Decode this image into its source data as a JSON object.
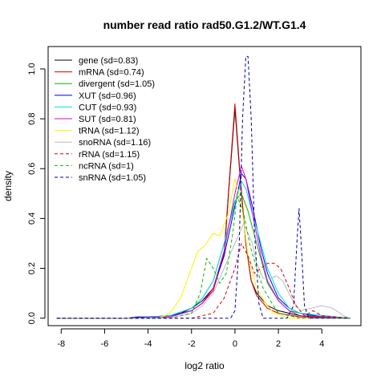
{
  "chart_data": {
    "type": "line",
    "title": "number read ratio rad50.G1.2/WT.G1.4",
    "xlabel": "log2 ratio",
    "ylabel": "density",
    "xlim": [
      -8.6,
      5.8
    ],
    "ylim": [
      -0.03,
      1.09
    ],
    "xticks": [
      -8,
      -6,
      -4,
      -2,
      0,
      2,
      4
    ],
    "yticks": [
      0.0,
      0.2,
      0.4,
      0.6,
      0.8,
      1.0
    ],
    "xtick_labels": [
      "-8",
      "-6",
      "-4",
      "-2",
      "0",
      "2",
      "4"
    ],
    "ytick_labels": [
      "0.0",
      "0.2",
      "0.4",
      "0.6",
      "0.8",
      "1.0"
    ],
    "legend_position": "top-left",
    "series": [
      {
        "name": "gene (sd=0.83)",
        "color": "#000000",
        "dash": "solid",
        "x": [
          -8.2,
          -5.0,
          -4.0,
          -3.0,
          -2.5,
          -2.0,
          -1.5,
          -1.0,
          -0.5,
          -0.25,
          0.0,
          0.25,
          0.5,
          0.75,
          1.0,
          1.5,
          2.0,
          2.5,
          3.0,
          3.5,
          5.3
        ],
        "y": [
          0,
          0,
          0.003,
          0.01,
          0.02,
          0.04,
          0.07,
          0.12,
          0.25,
          0.55,
          0.84,
          0.55,
          0.3,
          0.15,
          0.1,
          0.05,
          0.03,
          0.02,
          0.01,
          0.005,
          0
        ]
      },
      {
        "name": "mRNA (sd=0.74)",
        "color": "#d00000",
        "dash": "solid",
        "x": [
          -8.2,
          -5.0,
          -3.0,
          -2.0,
          -1.5,
          -1.0,
          -0.5,
          -0.25,
          0.0,
          0.25,
          0.5,
          0.75,
          1.0,
          1.5,
          2.0,
          3.0,
          5.3
        ],
        "y": [
          0,
          0,
          0.005,
          0.03,
          0.06,
          0.11,
          0.26,
          0.56,
          0.86,
          0.56,
          0.3,
          0.15,
          0.09,
          0.04,
          0.02,
          0.005,
          0
        ]
      },
      {
        "name": "divergent (sd=1.05)",
        "color": "#00bb00",
        "dash": "solid",
        "x": [
          -8.2,
          -4.5,
          -3.0,
          -2.0,
          -1.5,
          -1.0,
          -0.5,
          0.0,
          0.3,
          0.6,
          1.0,
          1.5,
          2.0,
          2.5,
          3.5,
          5.3
        ],
        "y": [
          0,
          0,
          0.01,
          0.04,
          0.08,
          0.15,
          0.3,
          0.47,
          0.5,
          0.43,
          0.3,
          0.14,
          0.07,
          0.03,
          0.01,
          0
        ]
      },
      {
        "name": "XUT (sd=0.96)",
        "color": "#0000ee",
        "dash": "solid",
        "x": [
          -8.2,
          -5.0,
          -4.5,
          -4.0,
          -3.0,
          -2.0,
          -1.5,
          -1.0,
          -0.5,
          0.0,
          0.3,
          0.5,
          0.8,
          1.2,
          1.5,
          2.0,
          2.5,
          3.0,
          4.0,
          5.3
        ],
        "y": [
          0,
          0,
          0.005,
          0.005,
          0.01,
          0.03,
          0.06,
          0.12,
          0.25,
          0.45,
          0.58,
          0.56,
          0.45,
          0.28,
          0.18,
          0.08,
          0.04,
          0.02,
          0.005,
          0
        ]
      },
      {
        "name": "CUT (sd=0.93)",
        "color": "#00e0e0",
        "dash": "solid",
        "x": [
          -8.2,
          -4.5,
          -3.0,
          -2.0,
          -1.5,
          -1.0,
          -0.5,
          0.0,
          0.3,
          0.5,
          0.8,
          1.2,
          1.5,
          2.0,
          2.5,
          3.0,
          5.3
        ],
        "y": [
          0,
          0,
          0.01,
          0.04,
          0.08,
          0.15,
          0.3,
          0.46,
          0.55,
          0.52,
          0.42,
          0.3,
          0.2,
          0.1,
          0.04,
          0.02,
          0
        ]
      },
      {
        "name": "SUT (sd=0.81)",
        "color": "#dd00dd",
        "dash": "solid",
        "x": [
          -8.2,
          -4.5,
          -3.0,
          -2.0,
          -1.5,
          -1.0,
          -0.5,
          0.0,
          0.3,
          0.5,
          0.8,
          1.2,
          1.5,
          2.0,
          2.5,
          3.0,
          5.3
        ],
        "y": [
          0,
          0,
          0.005,
          0.03,
          0.06,
          0.12,
          0.27,
          0.5,
          0.61,
          0.56,
          0.42,
          0.25,
          0.15,
          0.07,
          0.03,
          0.01,
          0
        ]
      },
      {
        "name": "tRNA (sd=1.12)",
        "color": "#ffee00",
        "dash": "solid",
        "x": [
          -8.2,
          -3.5,
          -3.0,
          -2.5,
          -2.0,
          -1.7,
          -1.4,
          -1.0,
          -0.7,
          -0.3,
          0.0,
          0.3,
          0.6,
          1.0,
          1.4,
          1.8,
          2.5,
          5.3
        ],
        "y": [
          0,
          0,
          0.02,
          0.08,
          0.2,
          0.27,
          0.29,
          0.34,
          0.33,
          0.42,
          0.56,
          0.46,
          0.25,
          0.12,
          0.06,
          0.02,
          0,
          0
        ]
      },
      {
        "name": "snoRNA (sd=1.16)",
        "color": "#bbbbbb",
        "dash": "solid",
        "x": [
          -8.2,
          -3.0,
          -2.0,
          -1.5,
          -1.0,
          -0.5,
          0.0,
          0.4,
          0.8,
          1.0,
          1.3,
          1.6,
          1.9,
          2.2,
          2.6,
          3.0,
          3.5,
          4.0,
          4.5,
          5.0,
          5.3
        ],
        "y": [
          0,
          0,
          0.02,
          0.05,
          0.1,
          0.2,
          0.3,
          0.38,
          0.3,
          0.22,
          0.16,
          0.16,
          0.17,
          0.15,
          0.08,
          0.03,
          0.04,
          0.05,
          0.04,
          0.01,
          0
        ]
      },
      {
        "name": "rRNA (sd=1.15)",
        "color": "#dd0000",
        "dash": "dashed",
        "x": [
          -8.2,
          -2.0,
          -1.0,
          -0.5,
          0.0,
          0.3,
          0.6,
          0.9,
          1.2,
          1.5,
          1.8,
          2.1,
          2.5,
          2.8,
          3.2,
          3.6,
          4.0,
          5.3
        ],
        "y": [
          0,
          0,
          0.02,
          0.08,
          0.2,
          0.3,
          0.25,
          0.18,
          0.2,
          0.22,
          0.22,
          0.2,
          0.12,
          0.05,
          0.01,
          0.03,
          0.01,
          0
        ]
      },
      {
        "name": "ncRNA (sd=1)",
        "color": "#00bb00",
        "dash": "dashed",
        "x": [
          -8.2,
          -3.0,
          -2.0,
          -1.6,
          -1.3,
          -1.0,
          -0.7,
          -0.4,
          -0.1,
          0.1,
          0.4,
          0.7,
          1.0,
          1.3,
          1.7,
          2.0,
          2.5,
          3.0,
          5.3
        ],
        "y": [
          0,
          0,
          0.02,
          0.1,
          0.24,
          0.2,
          0.14,
          0.18,
          0.34,
          0.49,
          0.42,
          0.29,
          0.2,
          0.12,
          0.06,
          0.02,
          0.01,
          0,
          0
        ]
      },
      {
        "name": "snRNA (sd=1.05)",
        "color": "#0000aa",
        "dash": "dashed",
        "x": [
          -8.2,
          -0.2,
          0.0,
          0.2,
          0.35,
          0.5,
          0.6,
          0.75,
          0.9,
          1.1,
          1.3,
          2.4,
          2.7,
          2.85,
          2.95,
          3.05,
          3.2,
          3.4,
          5.3
        ],
        "y": [
          0,
          0,
          0.03,
          0.3,
          0.8,
          1.05,
          1.05,
          0.8,
          0.35,
          0.06,
          0,
          0,
          0.05,
          0.3,
          0.44,
          0.3,
          0.05,
          0,
          0
        ]
      }
    ]
  }
}
